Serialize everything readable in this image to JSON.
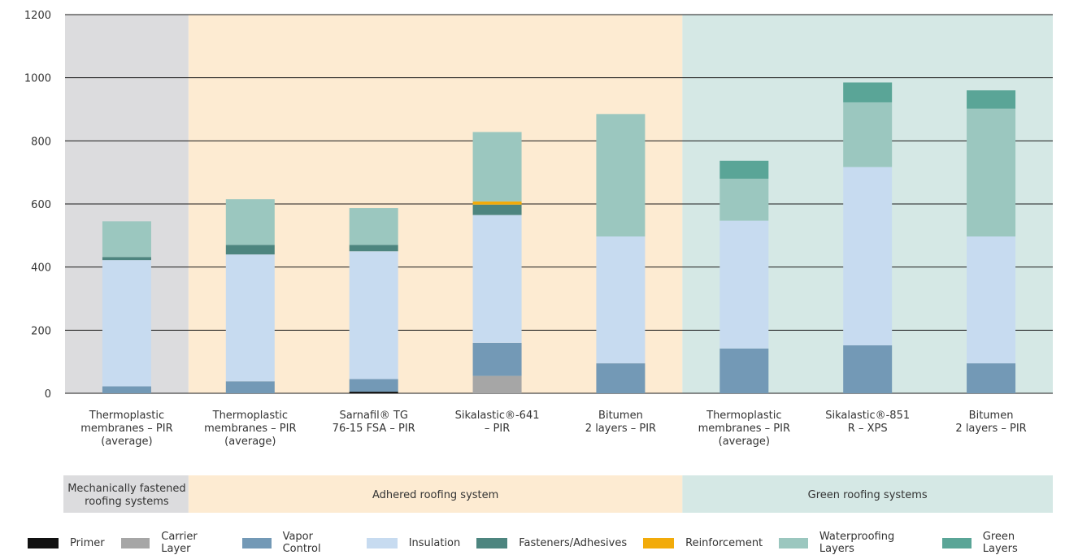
{
  "chart_data": {
    "type": "bar",
    "stacked": true,
    "title": "",
    "xlabel": "",
    "ylabel": "",
    "ylim": [
      0,
      1200
    ],
    "yticks": [
      0,
      200,
      400,
      600,
      800,
      1000,
      1200
    ],
    "grid": true,
    "legend_position": "bottom",
    "categories": [
      "Thermoplastic membranes – PIR (average)",
      "Thermoplastic membranes – PIR (average)",
      "Sarnafil® TG 76-15 FSA – PIR",
      "Sikalastic®-641 – PIR",
      "Bitumen 2 layers – PIR",
      "Thermoplastic membranes – PIR (average)",
      "Sikalastic®-851 R – XPS",
      "Bitumen 2 layers – PIR"
    ],
    "category_label_lines": [
      [
        "Thermoplastic",
        "membranes – PIR",
        "(average)"
      ],
      [
        "Thermoplastic",
        "membranes – PIR",
        "(average)"
      ],
      [
        "Sarnafil® TG",
        "76-15 FSA – PIR"
      ],
      [
        "Sikalastic®-641",
        "– PIR"
      ],
      [
        "Bitumen",
        "2 layers – PIR"
      ],
      [
        "Thermoplastic",
        "membranes – PIR",
        "(average)"
      ],
      [
        "Sikalastic®-851",
        "R – XPS"
      ],
      [
        "Bitumen",
        "2 layers – PIR"
      ]
    ],
    "series": [
      {
        "name": "Primer",
        "color": "#111111",
        "values": [
          0,
          0,
          5,
          0,
          0,
          0,
          0,
          0
        ]
      },
      {
        "name": "Carrier Layer",
        "color": "#a6a6a6",
        "values": [
          0,
          0,
          0,
          55,
          0,
          0,
          0,
          0
        ]
      },
      {
        "name": "Vapor Control",
        "color": "#7399b6",
        "values": [
          22,
          38,
          40,
          105,
          95,
          142,
          152,
          95
        ]
      },
      {
        "name": "Insulation",
        "color": "#c7dbf0",
        "values": [
          400,
          402,
          405,
          405,
          402,
          405,
          565,
          402
        ]
      },
      {
        "name": "Fasteners/Adhesives",
        "color": "#4d857f",
        "values": [
          10,
          30,
          20,
          33,
          0,
          0,
          0,
          0
        ]
      },
      {
        "name": "Reinforcement",
        "color": "#f2ab0a",
        "values": [
          0,
          0,
          0,
          10,
          0,
          0,
          0,
          0
        ]
      },
      {
        "name": "Waterproofing Layers",
        "color": "#9bc7bf",
        "values": [
          113,
          145,
          117,
          220,
          388,
          133,
          205,
          405
        ]
      },
      {
        "name": "Green Layers",
        "color": "#5aa597",
        "values": [
          0,
          0,
          0,
          0,
          0,
          57,
          63,
          58
        ]
      }
    ],
    "groups": [
      {
        "label_lines": [
          "Mechanically fastened",
          "roofing systems"
        ],
        "bg_color": "#dcdcde",
        "band_color": "#dcdcde",
        "start": 0,
        "end": 0
      },
      {
        "label_lines": [
          "Adhered roofing system"
        ],
        "bg_color": "#fdebd2",
        "band_color": "#fdebd2",
        "start": 1,
        "end": 4
      },
      {
        "label_lines": [
          "Green roofing systems"
        ],
        "bg_color": "#d5e8e5",
        "band_color": "#d5e8e5",
        "start": 5,
        "end": 7
      }
    ]
  }
}
